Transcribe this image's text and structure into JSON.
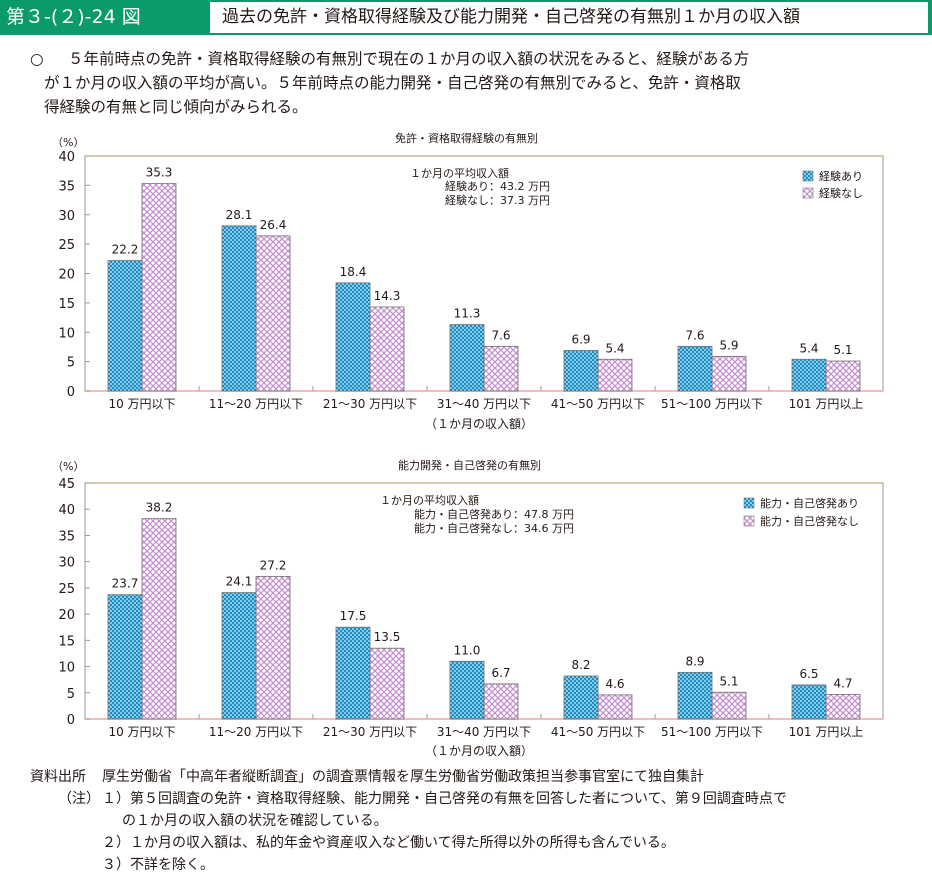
{
  "header": {
    "figure_number": "第３-(２)-24 図",
    "figure_title": "過去の免許・資格取得経験及び能力開発・自己啓発の有無別１か月の収入額",
    "accent_color": "#0b9a6a"
  },
  "summary": {
    "bullet": "○",
    "lines": [
      "５年前時点の免許・資格取得経験の有無別で現在の１か月の収入額の状況をみると、経験がある方",
      "が１か月の収入額の平均が高い。５年前時点の能力開発・自己啓発の有無別でみると、免許・資格取",
      "得経験の有無と同じ傾向がみられる。"
    ]
  },
  "chart_data": [
    {
      "type": "bar",
      "title": "免許・資格取得経験の有無別",
      "ylabel": "（%）",
      "xlabel": "（１か月の収入額）",
      "ylim": [
        0,
        40
      ],
      "yticks": [
        0,
        5,
        10,
        15,
        20,
        25,
        30,
        35,
        40
      ],
      "grid": false,
      "legend_position": "top-right",
      "categories": [
        "10 万円以下",
        "11～20 万円以下",
        "21～30 万円以下",
        "31～40 万円以下",
        "41～50 万円以下",
        "51～100 万円以下",
        "101 万円以上"
      ],
      "series": [
        {
          "name": "経験あり",
          "color": "#1a8fc6",
          "values": [
            22.2,
            28.1,
            18.4,
            11.3,
            6.9,
            7.6,
            5.4
          ]
        },
        {
          "name": "経験なし",
          "color": "#c58bcf",
          "values": [
            35.3,
            26.4,
            14.3,
            7.6,
            5.4,
            5.9,
            5.1
          ]
        }
      ],
      "annotation": {
        "heading": "１か月の平均収入額",
        "lines": [
          "経験あり：43.2 万円",
          "経験なし：37.3 万円"
        ]
      }
    },
    {
      "type": "bar",
      "title": "能力開発・自己啓発の有無別",
      "ylabel": "（%）",
      "xlabel": "（１か月の収入額）",
      "ylim": [
        0,
        45
      ],
      "yticks": [
        0,
        5,
        10,
        15,
        20,
        25,
        30,
        35,
        40,
        45
      ],
      "grid": false,
      "legend_position": "top-right",
      "categories": [
        "10 万円以下",
        "11～20 万円以下",
        "21～30 万円以下",
        "31～40 万円以下",
        "41～50 万円以下",
        "51～100 万円以下",
        "101 万円以上"
      ],
      "series": [
        {
          "name": "能力・自己啓発あり",
          "color": "#1a8fc6",
          "values": [
            23.7,
            24.1,
            17.5,
            11.0,
            8.2,
            8.9,
            6.5
          ]
        },
        {
          "name": "能力・自己啓発なし",
          "color": "#c58bcf",
          "values": [
            38.2,
            27.2,
            13.5,
            6.7,
            4.6,
            5.1,
            4.7
          ]
        }
      ],
      "annotation": {
        "heading": "１か月の平均収入額",
        "lines": [
          "能力・自己啓発あり：47.8 万円",
          "能力・自己啓発なし：34.6 万円"
        ]
      }
    }
  ],
  "notes": {
    "source_label": "資料出所",
    "source_text": "厚生労働省「中高年者縦断調査」の調査票情報を厚生労働省労働政策担当参事官室にて独自集計",
    "note_label": "（注）",
    "items": [
      "１）第５回調査の免許・資格取得経験、能力開発・自己啓発の有無を回答した者について、第９回調査時点で",
      "の１か月の収入額の状況を確認している。",
      "２）１か月の収入額は、私的年金や資産収入など働いて得た所得以外の所得も含んでいる。",
      "３）不詳を除く。"
    ]
  }
}
